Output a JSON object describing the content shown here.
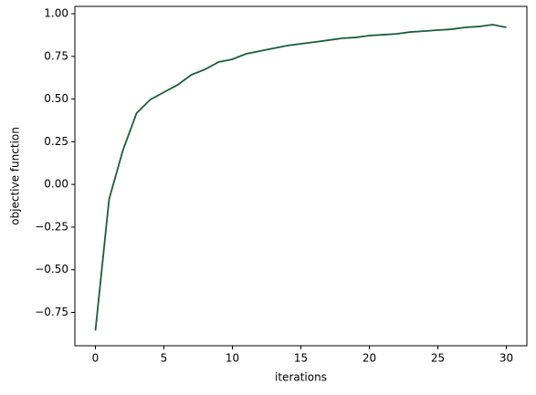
{
  "chart_data": {
    "type": "line",
    "x_label": "iterations",
    "y_label": "objective function",
    "x": [
      0,
      1,
      2,
      3,
      4,
      5,
      6,
      7,
      8,
      9,
      10,
      11,
      12,
      13,
      14,
      15,
      16,
      17,
      18,
      19,
      20,
      21,
      22,
      23,
      24,
      25,
      26,
      27,
      28,
      29,
      30
    ],
    "series": [
      {
        "name": "objective function",
        "color": "#1b5e35",
        "values": [
          -0.856,
          -0.086,
          0.198,
          0.417,
          0.497,
          0.54,
          0.583,
          0.642,
          0.674,
          0.717,
          0.733,
          0.765,
          0.781,
          0.797,
          0.813,
          0.824,
          0.834,
          0.845,
          0.856,
          0.861,
          0.872,
          0.877,
          0.882,
          0.893,
          0.898,
          0.904,
          0.909,
          0.92,
          0.925,
          0.936,
          0.92
        ]
      }
    ],
    "xlim": [
      -1.5,
      31.5
    ],
    "xticks": [
      0,
      5,
      10,
      15,
      20,
      25,
      30
    ],
    "ylim": [
      -0.945,
      1.043
    ],
    "yticks": [
      {
        "value": -0.75,
        "label": "−0.75"
      },
      {
        "value": -0.5,
        "label": "−0.50"
      },
      {
        "value": -0.25,
        "label": "−0.25"
      },
      {
        "value": 0,
        "label": "0.00"
      },
      {
        "value": 0.25,
        "label": "0.25"
      },
      {
        "value": 0.5,
        "label": "0.50"
      },
      {
        "value": 0.75,
        "label": "0.75"
      },
      {
        "value": 1,
        "label": "1.00"
      }
    ],
    "grid": false
  }
}
